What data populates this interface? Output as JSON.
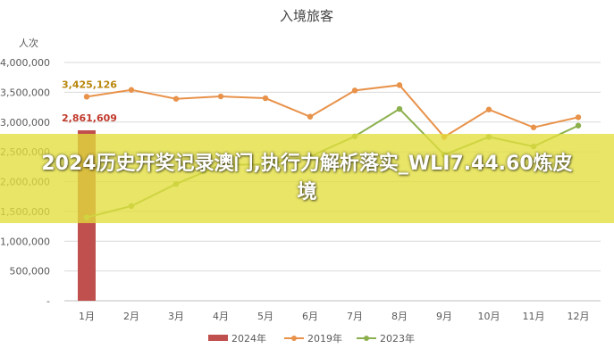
{
  "chart_data": {
    "type": "bar+line",
    "title": "入境旅客",
    "ylabel": "人次",
    "ylim": [
      0,
      4000000
    ],
    "yticks": [
      {
        "value": 0,
        "label": "-"
      },
      {
        "value": 500000,
        "label": "500,000"
      },
      {
        "value": 1000000,
        "label": "1,000,000"
      },
      {
        "value": 1500000,
        "label": "1,500,000"
      },
      {
        "value": 2000000,
        "label": "2,000,000"
      },
      {
        "value": 2500000,
        "label": "2,500,000"
      },
      {
        "value": 3000000,
        "label": "3,000,000"
      },
      {
        "value": 3500000,
        "label": "3,500,000"
      },
      {
        "value": 4000000,
        "label": "4,000,000"
      }
    ],
    "categories": [
      "1月",
      "2月",
      "3月",
      "4月",
      "5月",
      "6月",
      "7月",
      "8月",
      "9月",
      "10月",
      "11月",
      "12月"
    ],
    "grid": true,
    "legend_position": "bottom",
    "series": [
      {
        "name": "2024年",
        "kind": "bar",
        "color": "#c0504d",
        "values": [
          2861609,
          null,
          null,
          null,
          null,
          null,
          null,
          null,
          null,
          null,
          null,
          null
        ],
        "data_labels": {
          "0": "2,861,609"
        },
        "label_color": "#c0392b"
      },
      {
        "name": "2019年",
        "kind": "line",
        "color": "#e8924a",
        "values": [
          3425126,
          3540000,
          3390000,
          3430000,
          3400000,
          3090000,
          3530000,
          3620000,
          2750000,
          3210000,
          2910000,
          3080000
        ],
        "data_labels": {
          "0": "3,425,126"
        },
        "label_color": "#b8860b"
      },
      {
        "name": "2023年",
        "kind": "line",
        "color": "#8cb04d",
        "values": [
          1400000,
          1590000,
          1960000,
          2280000,
          2290000,
          2420000,
          2760000,
          3220000,
          2450000,
          2750000,
          2590000,
          2940000
        ]
      }
    ]
  },
  "overlay": {
    "text": "2024历史开奖记录澳门,执行力解析落实_WLI7.44.60炼皮境",
    "color": "#e0dc3c"
  }
}
